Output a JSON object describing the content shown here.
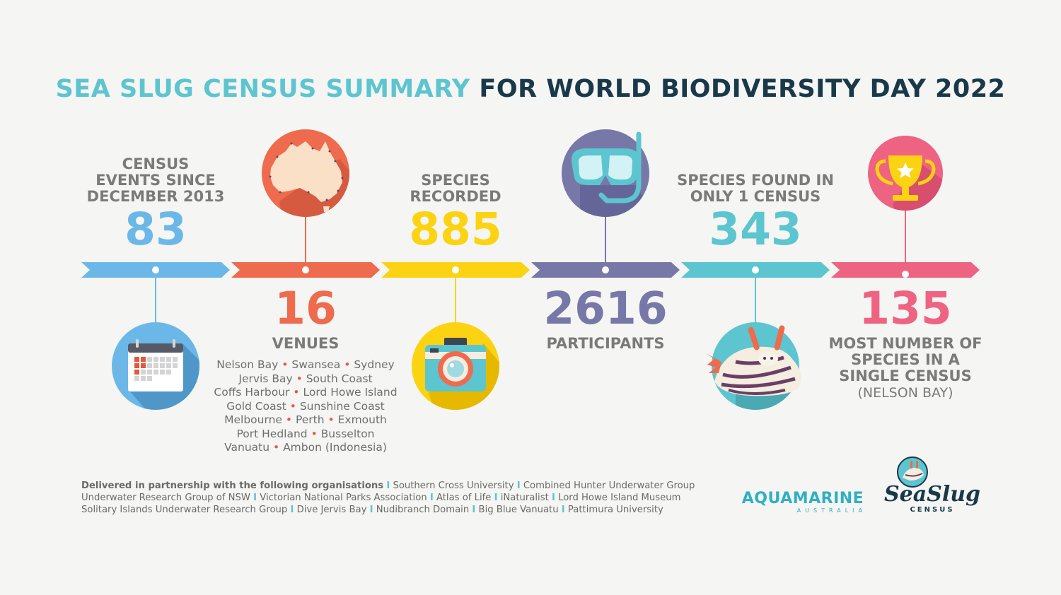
{
  "title": {
    "part1": "SEA SLUG CENSUS SUMMARY",
    "part2": "FOR WORLD BIODIVERSITY DAY 2022"
  },
  "colors": {
    "blue": "#6bb8e8",
    "orange": "#ee6b4d",
    "yellow": "#fbd313",
    "purple": "#7878a8",
    "teal": "#5cc5cf",
    "pink": "#ef6382",
    "title_teal": "#5cc5cf",
    "title_navy": "#19394a"
  },
  "stats": {
    "census": {
      "label1": "CENSUS",
      "label2": "EVENTS SINCE",
      "label3": "DECEMBER 2013",
      "value": "83",
      "icon": "calendar-icon"
    },
    "venues": {
      "value": "16",
      "label": "VENUES",
      "icon": "australia-map-icon",
      "list": [
        [
          "Nelson Bay",
          "Swansea",
          "Sydney"
        ],
        [
          "Jervis Bay",
          "South Coast"
        ],
        [
          "Coffs Harbour",
          "Lord Howe Island"
        ],
        [
          "Gold Coast",
          "Sunshine Coast"
        ],
        [
          "Melbourne",
          "Perth",
          "Exmouth"
        ],
        [
          "Port Hedland",
          "Busselton"
        ],
        [
          "Vanuatu",
          "Ambon (Indonesia)"
        ]
      ]
    },
    "species": {
      "label1": "SPECIES",
      "label2": "RECORDED",
      "value": "885",
      "icon": "camera-icon"
    },
    "participants": {
      "value": "2616",
      "label": "PARTICIPANTS",
      "icon": "snorkel-mask-icon"
    },
    "single": {
      "label1": "SPECIES FOUND IN",
      "label2": "ONLY 1 CENSUS",
      "value": "343",
      "icon": "sea-slug-icon"
    },
    "most": {
      "value": "135",
      "label1": "MOST NUMBER OF",
      "label2": "SPECIES IN A",
      "label3": "SINGLE CENSUS",
      "sub": "(NELSON BAY)",
      "icon": "trophy-icon"
    }
  },
  "partners": {
    "intro": "Delivered in partnership with the following organisations",
    "line1": [
      "Southern Cross University",
      "Combined Hunter Underwater Group"
    ],
    "line2": [
      "Underwater Research Group of NSW",
      "Victorian National Parks Association",
      "Atlas of Life",
      "iNaturalist",
      "Lord Howe Island Museum"
    ],
    "line3": [
      "Solitary Islands Underwater Research Group",
      "Dive Jervis Bay",
      "Nudibranch Domain",
      "Big Blue Vanuatu",
      "Pattimura University"
    ]
  },
  "logos": {
    "aquamarine": "AQUAMARINE",
    "aquamarine_sub": "AUSTRALIA",
    "seaslug": "SeaSlug",
    "seaslug_sub": "CENSUS"
  }
}
